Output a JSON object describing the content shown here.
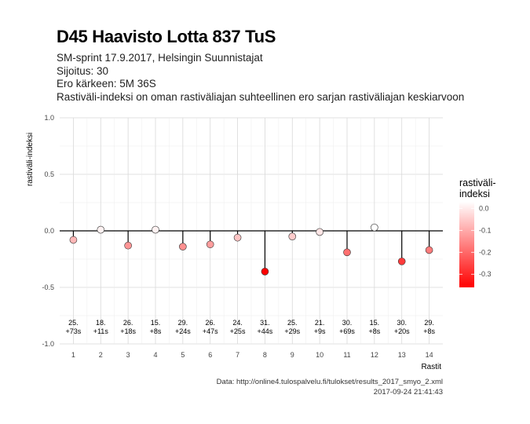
{
  "title": "D45 Haavisto Lotta 837 TuS",
  "subtitle_lines": [
    "SM-sprint 17.9.2017, Helsingin Suunnistajat",
    "Sijoitus: 30",
    "Ero kärkeen: 5M 36S",
    "Rastiväli-indeksi on oman rastiväliajan suhteellinen ero sarjan rastiväliajan keskiarvoon"
  ],
  "caption_lines": [
    "Data: http://online4.tulospalvelu.fi/tulokset/results_2017_smyo_2.xml",
    "2017-09-24 21:41:43"
  ],
  "colors": {
    "low": "#ff0000",
    "high": "#ffffff",
    "zero_line": "#000000",
    "grid_major": "#d9d9d9",
    "grid_minor": "#ececec"
  },
  "chart_data": {
    "type": "scatter",
    "x": [
      1,
      2,
      3,
      4,
      5,
      6,
      7,
      8,
      9,
      10,
      11,
      12,
      13,
      14
    ],
    "values": [
      -0.08,
      0.01,
      -0.13,
      0.01,
      -0.14,
      -0.12,
      -0.06,
      -0.36,
      -0.05,
      -0.01,
      -0.19,
      0.03,
      -0.27,
      -0.17
    ],
    "rank_labels": [
      "25.",
      "18.",
      "26.",
      "15.",
      "29.",
      "26.",
      "24.",
      "31.",
      "25.",
      "21.",
      "30.",
      "15.",
      "30.",
      "29."
    ],
    "time_labels": [
      "+73s",
      "+11s",
      "+18s",
      "+8s",
      "+24s",
      "+47s",
      "+25s",
      "+44s",
      "+29s",
      "+9s",
      "+69s",
      "+8s",
      "+20s",
      "+8s"
    ],
    "xlabel": "Rastit",
    "ylabel": "rastiväli-indeksi",
    "xlim": [
      0.5,
      14.5
    ],
    "ylim": [
      -1.0,
      1.0
    ],
    "y_ticks": [
      -1.0,
      -0.5,
      0.0,
      0.5,
      1.0
    ],
    "y_tick_labels": [
      "-1.0",
      "-0.5",
      "0.0",
      "0.5",
      "1.0"
    ],
    "x_tick_labels": [
      "1",
      "2",
      "3",
      "4",
      "5",
      "6",
      "7",
      "8",
      "9",
      "10",
      "11",
      "12",
      "13",
      "14"
    ],
    "grid": true,
    "legend": {
      "title_lines": [
        "rastiväli-",
        "indeksi"
      ],
      "placement": "right",
      "range": [
        -0.36,
        0.03
      ],
      "tick_values": [
        0.0,
        -0.1,
        -0.2,
        -0.3
      ],
      "tick_labels": [
        "0.0",
        "-0.1",
        "-0.2",
        "-0.3"
      ]
    }
  }
}
